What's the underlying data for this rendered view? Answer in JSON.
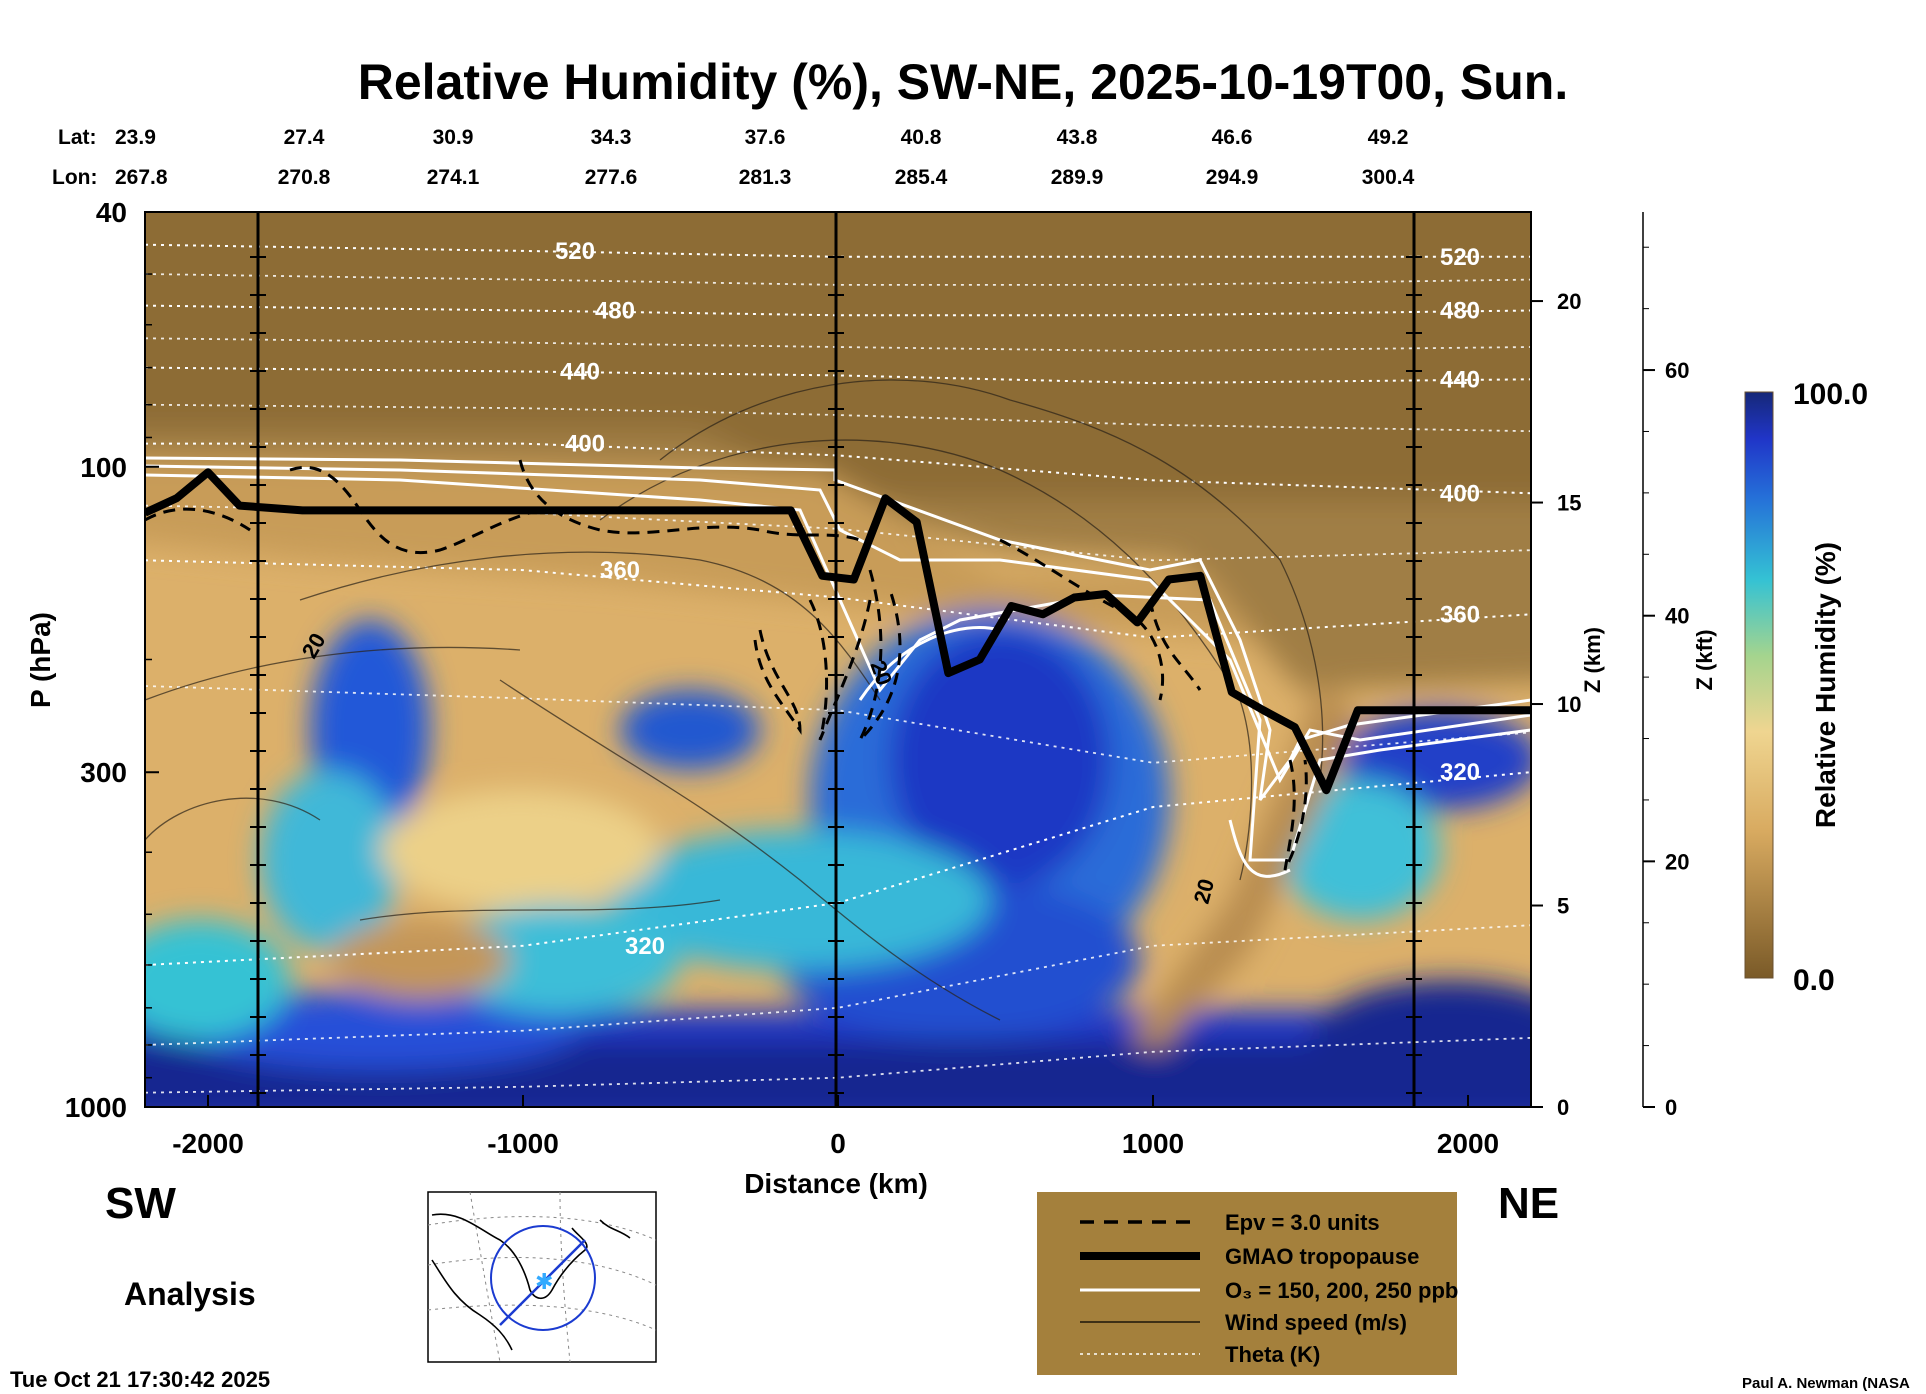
{
  "chart_data": {
    "type": "heatmap",
    "title": "Relative Humidity (%), SW-NE, 2025-10-19T00, Sun.",
    "xlabel": "Distance (km)",
    "ylabel": "P (hPa)",
    "xlim": [
      -2200,
      2200
    ],
    "ylim": [
      1000,
      40
    ],
    "y_log_scale": true,
    "x_ticks": [
      -2000,
      -1000,
      0,
      1000,
      2000
    ],
    "x_tick_labels": [
      "-2000",
      "-1000",
      "0",
      "1000",
      "2000"
    ],
    "y_ticks": [
      40,
      100,
      300,
      1000
    ],
    "y_tick_labels": [
      "40",
      "100",
      "300",
      "1000"
    ],
    "z_km_label": "Z (km)",
    "z_km_ticks": [
      0,
      5,
      10,
      15,
      20
    ],
    "z_km_tick_labels": [
      "0",
      "5",
      "10",
      "15",
      "20"
    ],
    "z_kft_label": "Z (kft)",
    "z_kft_ticks": [
      0,
      20,
      40,
      60
    ],
    "z_kft_tick_labels": [
      "0",
      "20",
      "40",
      "60"
    ],
    "lat_label": "Lat:",
    "lon_label": "Lon:",
    "lat_values": [
      "23.9",
      "27.4",
      "30.9",
      "34.3",
      "37.6",
      "40.8",
      "43.8",
      "46.6",
      "49.2"
    ],
    "lon_values": [
      "267.8",
      "270.8",
      "274.1",
      "277.6",
      "281.3",
      "285.4",
      "289.9",
      "294.9",
      "300.4"
    ],
    "colorbar_label": "Relative Humidity (%)",
    "colorbar_range": [
      0.0,
      100.0
    ],
    "colorbar_max_label": "100.0",
    "colorbar_min_label": "0.0",
    "theta_contours": [
      {
        "label": "520",
        "x": [
          -2200,
          -1000,
          0,
          1000,
          2200
        ],
        "y": [
          45,
          46,
          47,
          47,
          47
        ]
      },
      {
        "label": "480",
        "x": [
          -2200,
          -1000,
          0,
          1000,
          2200
        ],
        "y": [
          56,
          57,
          58,
          58,
          57
        ]
      },
      {
        "label": "440",
        "x": [
          -2200,
          -1000,
          0,
          1000,
          2200
        ],
        "y": [
          70,
          71,
          72,
          74,
          73
        ]
      },
      {
        "label": "400",
        "x": [
          -2200,
          -1000,
          0,
          1000,
          2200
        ],
        "y": [
          92,
          92,
          96,
          105,
          110
        ]
      },
      {
        "label": "360",
        "x": [
          -2200,
          -1000,
          0,
          1000,
          2200
        ],
        "y": [
          140,
          145,
          160,
          185,
          170
        ]
      },
      {
        "label": "320",
        "x": [
          -2200,
          -1000,
          0,
          1000,
          2200
        ],
        "y": [
          600,
          560,
          480,
          340,
          300
        ]
      }
    ],
    "tropopause_pressure": {
      "x": [
        -2200,
        -2100,
        -2000,
        -1900,
        -1800,
        -1700,
        -1000,
        -150,
        -50,
        50,
        150,
        250,
        350,
        450,
        550,
        650,
        750,
        850,
        950,
        1050,
        1150,
        1250,
        1350,
        1450,
        1550,
        1650,
        1800,
        2200
      ],
      "y": [
        118,
        112,
        102,
        115,
        116,
        117,
        117,
        117,
        148,
        150,
        112,
        122,
        210,
        200,
        165,
        170,
        160,
        158,
        175,
        150,
        148,
        225,
        240,
        255,
        320,
        240,
        240,
        240
      ]
    },
    "labels": {
      "sw": "SW",
      "ne": "NE",
      "analysis": "Analysis",
      "timestamp": "Tue Oct 21 17:30:42 2025",
      "credit": "Paul A. Newman (NASA"
    },
    "legend": {
      "position": "bottom-center",
      "entries": [
        {
          "name": "epv",
          "label": "Epv = 3.0 units"
        },
        {
          "name": "tropopause",
          "label": "GMAO tropopause"
        },
        {
          "name": "ozone",
          "label": "O₃ = 150, 200, 250 ppb"
        },
        {
          "name": "wind",
          "label": "Wind speed (m/s)"
        },
        {
          "name": "theta",
          "label": "Theta (K)"
        }
      ]
    },
    "wind_contour_label": "20",
    "colors": {
      "dry": "#8a6830",
      "tan": "#d5a860",
      "mid": "#e8c882",
      "moist": "#33c2d6",
      "wet": "#1f49d6",
      "saturated": "#182890",
      "legend_bg": "#a4803c"
    }
  }
}
